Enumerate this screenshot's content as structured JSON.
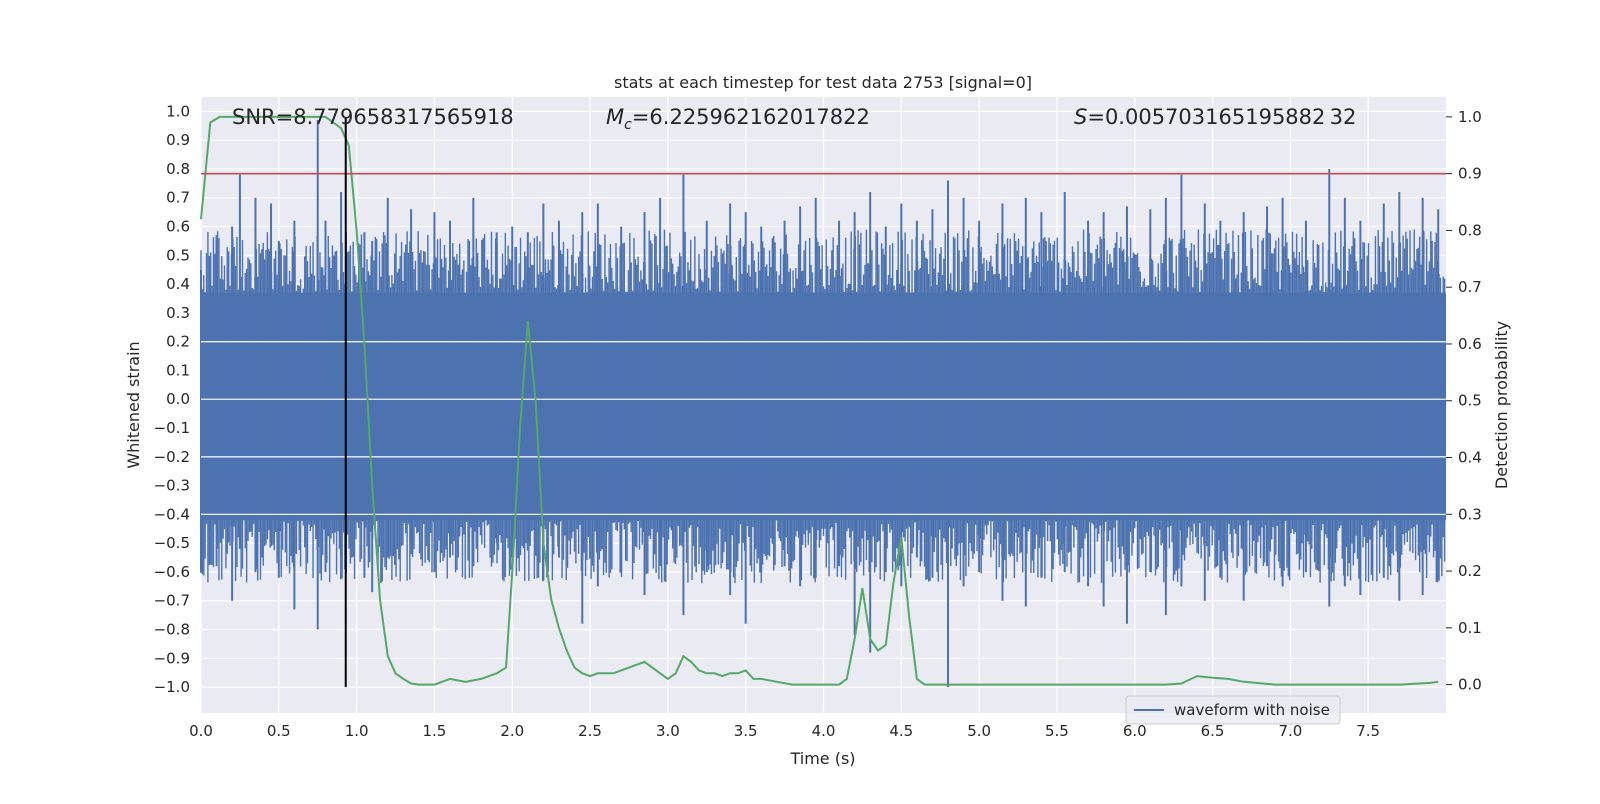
{
  "chart_data": {
    "type": "line",
    "title": "stats at each timestep for test data 2753 [signal=0]",
    "xlabel": "Time (s)",
    "ylabel_left": "Whitened strain",
    "ylabel_right": "Detection probability",
    "xlim": [
      0,
      8
    ],
    "ylim_left": [
      -1.09,
      1.05
    ],
    "ylim_right": [
      -0.05,
      1.035
    ],
    "x_ticks": [
      "0.0",
      "0.5",
      "1.0",
      "1.5",
      "2.0",
      "2.5",
      "3.0",
      "3.5",
      "4.0",
      "4.5",
      "5.0",
      "5.5",
      "6.0",
      "6.5",
      "7.0",
      "7.5"
    ],
    "y_ticks_left": [
      "1.0",
      "0.9",
      "0.8",
      "0.7",
      "0.6",
      "0.5",
      "0.4",
      "0.3",
      "0.2",
      "0.1",
      "0.0",
      "−0.1",
      "−0.2",
      "−0.3",
      "−0.4",
      "−0.5",
      "−0.6",
      "−0.7",
      "−0.8",
      "−0.9",
      "−1.0"
    ],
    "y_ticks_right": [
      "0.0",
      "0.1",
      "0.2",
      "0.3",
      "0.4",
      "0.5",
      "0.6",
      "0.7",
      "0.8",
      "0.9",
      "1.0"
    ],
    "grid": true,
    "legend_position": "lower-right",
    "annotations": {
      "snr": "SNR=8.779658317565918",
      "mc_symbol": "M",
      "mc_subscript": "c",
      "mc_value": "=6.225962162017822",
      "s_symbol": "S",
      "s_value": "=0.005703165195882 32"
    },
    "series": [
      {
        "name": "waveform with noise",
        "axis": "left",
        "color": "#4c72b0",
        "style": "noise band",
        "dense_band": [
          -0.42,
          0.37
        ],
        "peak_times": [
          0.0,
          0.1,
          0.2,
          0.25,
          0.35,
          0.45,
          0.5,
          0.6,
          0.75,
          0.8,
          0.9,
          1.05,
          1.1,
          1.2,
          1.35,
          1.5,
          1.6,
          1.75,
          1.9,
          2.0,
          2.1,
          2.2,
          2.3,
          2.45,
          2.55,
          2.7,
          2.85,
          2.95,
          3.1,
          3.25,
          3.4,
          3.5,
          3.6,
          3.75,
          3.85,
          3.95,
          4.1,
          4.2,
          4.3,
          4.4,
          4.5,
          4.6,
          4.7,
          4.8,
          4.9,
          5.0,
          5.15,
          5.3,
          5.4,
          5.55,
          5.7,
          5.8,
          5.95,
          6.1,
          6.2,
          6.3,
          6.45,
          6.55,
          6.7,
          6.85,
          6.95,
          7.1,
          7.25,
          7.35,
          7.45,
          7.6,
          7.7,
          7.85,
          7.95
        ],
        "peak_highs": [
          0.45,
          0.55,
          0.6,
          0.78,
          0.7,
          0.68,
          0.55,
          0.62,
          0.97,
          0.62,
          0.72,
          0.58,
          0.55,
          0.7,
          0.66,
          0.65,
          0.62,
          0.7,
          0.58,
          0.6,
          0.58,
          0.68,
          0.62,
          0.65,
          0.68,
          0.6,
          0.65,
          0.7,
          0.78,
          0.62,
          0.68,
          0.65,
          0.6,
          0.62,
          0.67,
          0.7,
          0.62,
          0.65,
          0.72,
          0.6,
          0.68,
          0.62,
          0.66,
          0.76,
          0.7,
          0.62,
          0.68,
          0.7,
          0.65,
          0.72,
          0.62,
          0.65,
          0.67,
          0.66,
          0.7,
          0.78,
          0.68,
          0.62,
          0.65,
          0.67,
          0.7,
          0.62,
          0.8,
          0.7,
          0.62,
          0.68,
          0.72,
          0.7,
          0.66
        ],
        "peak_lows": [
          -0.6,
          -0.58,
          -0.7,
          -0.52,
          -0.6,
          -0.5,
          -0.62,
          -0.73,
          -0.8,
          -0.6,
          -0.55,
          -0.62,
          -0.67,
          -0.55,
          -0.5,
          -0.6,
          -0.55,
          -0.58,
          -0.5,
          -0.55,
          -0.5,
          -0.63,
          -0.55,
          -0.78,
          -0.65,
          -0.6,
          -0.68,
          -0.55,
          -0.75,
          -0.6,
          -0.68,
          -0.78,
          -0.6,
          -0.58,
          -0.65,
          -0.62,
          -0.58,
          -0.82,
          -0.88,
          -0.6,
          -0.65,
          -0.55,
          -0.62,
          -1.0,
          -0.65,
          -0.6,
          -0.7,
          -0.72,
          -0.62,
          -0.6,
          -0.65,
          -0.72,
          -0.78,
          -0.6,
          -0.75,
          -0.65,
          -0.7,
          -0.62,
          -0.7,
          -0.58,
          -0.65,
          -0.6,
          -0.72,
          -0.65,
          -0.68,
          -0.62,
          -0.7,
          -0.68,
          -0.62
        ]
      },
      {
        "name": "",
        "axis": "right",
        "color": "#55a868",
        "x": [
          0.0,
          0.06,
          0.12,
          0.2,
          0.3,
          0.4,
          0.5,
          0.6,
          0.7,
          0.8,
          0.85,
          0.9,
          0.95,
          1.0,
          1.05,
          1.1,
          1.15,
          1.2,
          1.25,
          1.3,
          1.35,
          1.4,
          1.5,
          1.6,
          1.7,
          1.8,
          1.9,
          1.96,
          2.0,
          2.05,
          2.1,
          2.15,
          2.2,
          2.25,
          2.3,
          2.35,
          2.4,
          2.45,
          2.5,
          2.55,
          2.6,
          2.65,
          2.7,
          2.75,
          2.8,
          2.85,
          2.9,
          2.95,
          3.0,
          3.05,
          3.1,
          3.15,
          3.2,
          3.25,
          3.3,
          3.35,
          3.4,
          3.45,
          3.5,
          3.55,
          3.6,
          3.7,
          3.8,
          3.9,
          4.0,
          4.05,
          4.1,
          4.15,
          4.2,
          4.25,
          4.3,
          4.35,
          4.4,
          4.45,
          4.5,
          4.55,
          4.6,
          4.65,
          4.7,
          4.8,
          4.9,
          5.0,
          5.2,
          5.4,
          5.6,
          5.8,
          6.0,
          6.2,
          6.3,
          6.4,
          6.5,
          6.6,
          6.7,
          6.9,
          7.1,
          7.3,
          7.5,
          7.7,
          7.9,
          7.95
        ],
        "y": [
          0.82,
          0.99,
          1.0,
          1.0,
          1.0,
          1.0,
          1.0,
          1.0,
          1.0,
          1.0,
          0.99,
          0.98,
          0.95,
          0.8,
          0.6,
          0.35,
          0.15,
          0.05,
          0.02,
          0.01,
          0.002,
          0.0,
          0.0,
          0.01,
          0.005,
          0.01,
          0.02,
          0.03,
          0.2,
          0.45,
          0.64,
          0.5,
          0.25,
          0.15,
          0.1,
          0.06,
          0.03,
          0.02,
          0.015,
          0.02,
          0.02,
          0.02,
          0.025,
          0.03,
          0.035,
          0.04,
          0.03,
          0.02,
          0.01,
          0.02,
          0.05,
          0.04,
          0.025,
          0.02,
          0.02,
          0.015,
          0.02,
          0.02,
          0.025,
          0.01,
          0.01,
          0.005,
          0.0,
          0.0,
          0.0,
          0.0,
          0.0,
          0.01,
          0.08,
          0.17,
          0.08,
          0.06,
          0.07,
          0.18,
          0.26,
          0.12,
          0.01,
          0.0,
          0.0,
          0.0,
          0.0,
          0.0,
          0.0,
          0.0,
          0.0,
          0.0,
          0.0,
          0.0,
          0.002,
          0.015,
          0.012,
          0.01,
          0.005,
          0.0,
          0.0,
          0.0,
          0.0,
          0.0,
          0.003,
          0.005
        ]
      },
      {
        "name": "",
        "axis": "right",
        "color": "#c44e52",
        "style": "horizontal line",
        "y": 0.9
      },
      {
        "name": "",
        "axis": "left",
        "color": "#000000",
        "style": "vertical line",
        "x": 0.93,
        "y_range": [
          -1.0,
          0.98
        ]
      }
    ]
  }
}
